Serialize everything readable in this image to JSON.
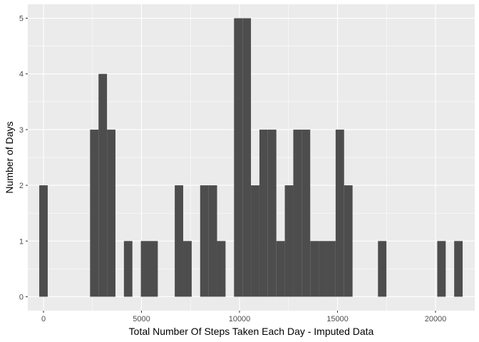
{
  "chart_data": {
    "type": "bar",
    "title": "",
    "xlabel": "Total Number Of Steps Taken Each Day - Imputed Data",
    "ylabel": "Number of Days",
    "xlim": [
      -800,
      22000
    ],
    "ylim": [
      -0.25,
      5.25
    ],
    "x_ticks": [
      0,
      5000,
      10000,
      15000,
      20000
    ],
    "y_ticks": [
      0,
      1,
      2,
      3,
      4,
      5
    ],
    "bin_width": 432,
    "bins": [
      {
        "x": 0,
        "count": 2
      },
      {
        "x": 2592,
        "count": 3
      },
      {
        "x": 3024,
        "count": 4
      },
      {
        "x": 3456,
        "count": 3
      },
      {
        "x": 4320,
        "count": 1
      },
      {
        "x": 5184,
        "count": 1
      },
      {
        "x": 5616,
        "count": 1
      },
      {
        "x": 6912,
        "count": 2
      },
      {
        "x": 7344,
        "count": 1
      },
      {
        "x": 8208,
        "count": 2
      },
      {
        "x": 8640,
        "count": 2
      },
      {
        "x": 9072,
        "count": 1
      },
      {
        "x": 9936,
        "count": 5
      },
      {
        "x": 10368,
        "count": 5
      },
      {
        "x": 10800,
        "count": 2
      },
      {
        "x": 11232,
        "count": 3
      },
      {
        "x": 11664,
        "count": 3
      },
      {
        "x": 12096,
        "count": 1
      },
      {
        "x": 12528,
        "count": 2
      },
      {
        "x": 12960,
        "count": 3
      },
      {
        "x": 13392,
        "count": 3
      },
      {
        "x": 13824,
        "count": 1
      },
      {
        "x": 14256,
        "count": 1
      },
      {
        "x": 14688,
        "count": 1
      },
      {
        "x": 15120,
        "count": 3
      },
      {
        "x": 15552,
        "count": 2
      },
      {
        "x": 17280,
        "count": 1
      },
      {
        "x": 20304,
        "count": 1
      },
      {
        "x": 21168,
        "count": 1
      }
    ],
    "grid": true,
    "colors": {
      "panel": "#EBEBEB",
      "grid_major": "#FFFFFF",
      "bar": "#4D4D4D",
      "tick": "#333333"
    }
  }
}
